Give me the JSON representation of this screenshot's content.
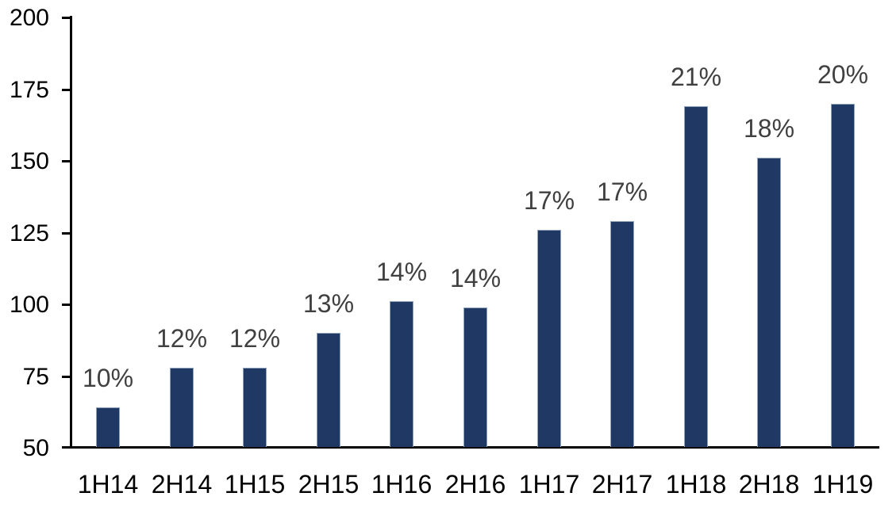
{
  "chart_data": {
    "type": "bar",
    "title": "",
    "xlabel": "",
    "ylabel": "",
    "categories": [
      "1H14",
      "2H14",
      "1H15",
      "2H15",
      "1H16",
      "2H16",
      "1H17",
      "2H17",
      "1H18",
      "2H18",
      "1H19"
    ],
    "values": [
      64,
      78,
      78,
      90,
      101,
      99,
      126,
      129,
      169,
      151,
      170
    ],
    "bar_labels": [
      "10%",
      "12%",
      "12%",
      "13%",
      "14%",
      "14%",
      "17%",
      "17%",
      "21%",
      "18%",
      "20%"
    ],
    "ylim": [
      50,
      200
    ],
    "yticks": [
      50,
      75,
      100,
      125,
      150,
      175,
      200
    ],
    "grid": false,
    "legend": false,
    "colors": {
      "bar_fill": "#1f3864",
      "bar_border": "#8fa2bc",
      "data_label": "#404040",
      "axis": "#000000",
      "tick_label": "#000000",
      "background": "#ffffff"
    }
  }
}
